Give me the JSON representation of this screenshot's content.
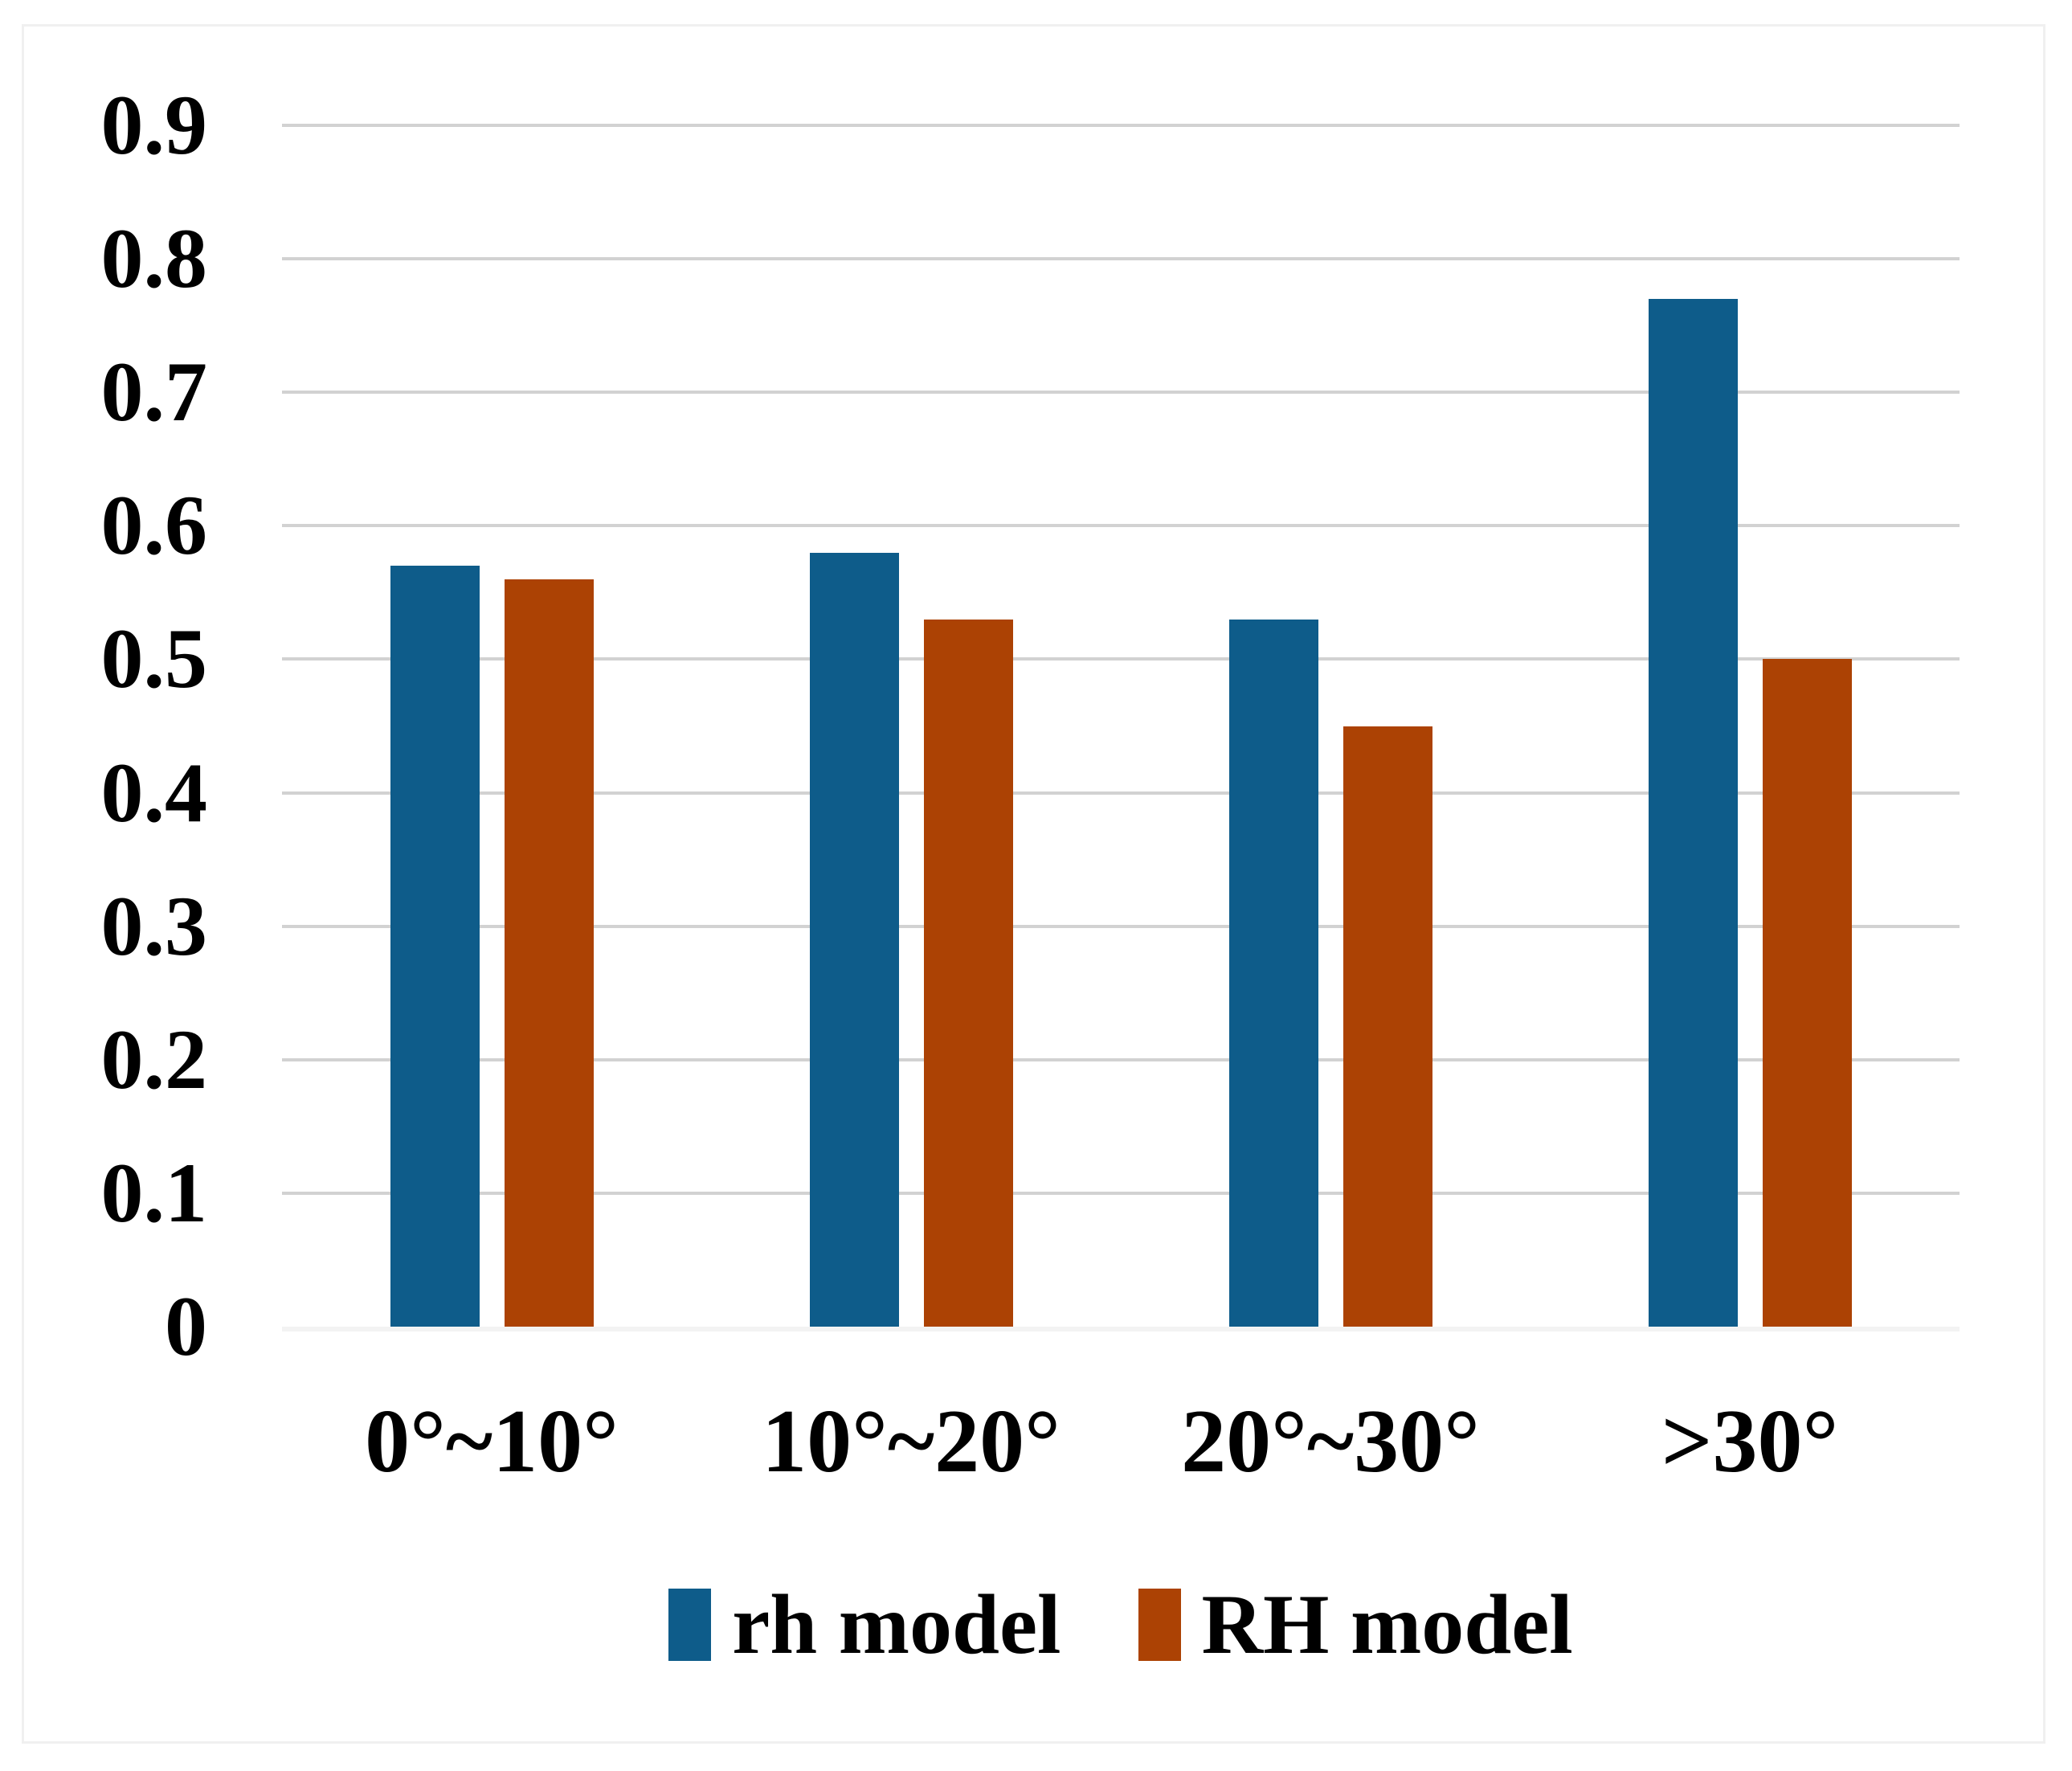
{
  "chart_data": {
    "type": "bar",
    "title": "",
    "categories": [
      "0°~10°",
      "10°°~20°",
      "20°~30°",
      ">30°"
    ],
    "categories_display": [
      "0°~10°",
      "10°~20°",
      "20°~30°",
      ">30°"
    ],
    "series": [
      {
        "name": "rh model",
        "color": "#0E5C8A",
        "values": [
          0.57,
          0.58,
          0.53,
          0.77
        ]
      },
      {
        "name": "RH model",
        "color": "#AC4204",
        "values": [
          0.56,
          0.53,
          0.45,
          0.5
        ]
      }
    ],
    "xlabel": "",
    "ylabel": "",
    "ylim": [
      0,
      0.9
    ],
    "ytick_step": 0.1,
    "ytick_labels": [
      "0",
      "0.1",
      "0.2",
      "0.3",
      "0.4",
      "0.5",
      "0.6",
      "0.7",
      "0.8",
      "0.9"
    ],
    "grid": "horizontal",
    "legend_position": "bottom"
  },
  "legend": {
    "items": [
      {
        "label": "rh model",
        "color": "#0E5C8A"
      },
      {
        "label": "RH model",
        "color": "#AC4204"
      }
    ]
  },
  "colors": {
    "bar_blue": "#0E5C8A",
    "bar_orange": "#AC4204",
    "gridline": "#D2D2D2",
    "zero_line": "#F3F3F3",
    "panel_border": "#F0F0F0",
    "text": "#000000",
    "background": "#FFFFFF"
  }
}
